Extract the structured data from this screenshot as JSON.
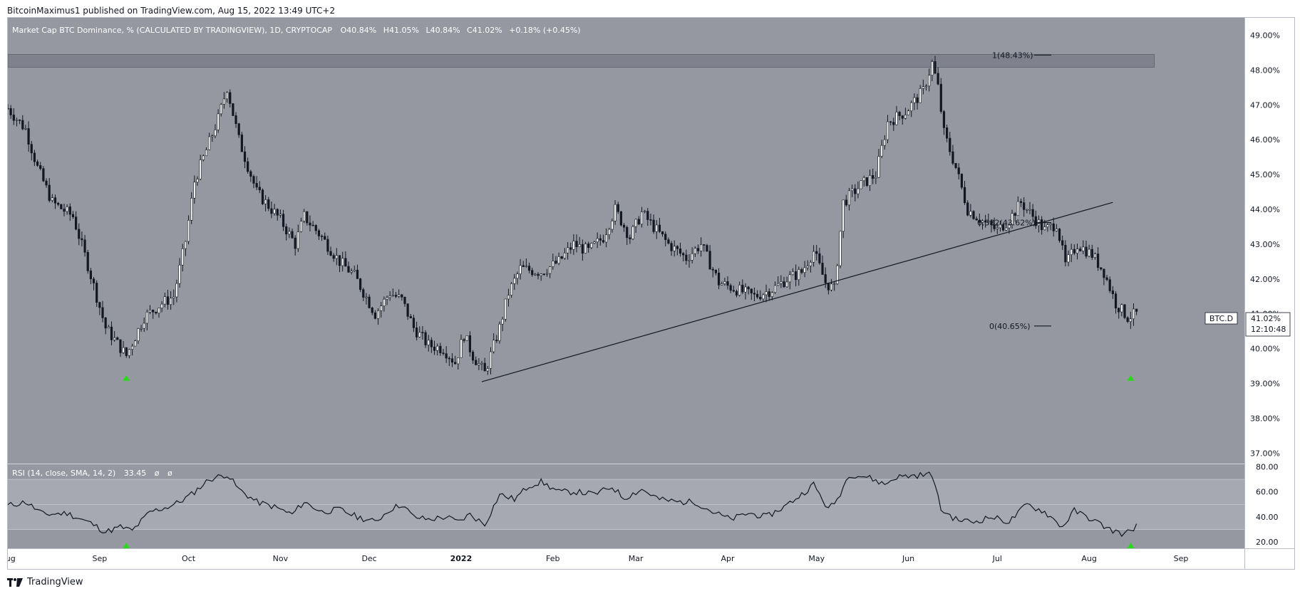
{
  "attribution": "BitcoinMaximus1 published on TradingView.com, Aug 15, 2022 13:49 UTC+2",
  "footer_brand": "TradingView",
  "colors": {
    "main_bg": "#9598a1",
    "rsi_bg": "#9598a1",
    "rsi_band": "#a6a9b2",
    "candle": "#131722",
    "signal": "#2bd91c",
    "resistance_box": "#787b86"
  },
  "legend": {
    "symbol": "Market Cap BTC Dominance, % (CALCULATED BY TRADINGVIEW), 1D, CRYPTOCAP",
    "o_label": "O",
    "o_value": "40.84%",
    "h_label": "H",
    "h_value": "41.05%",
    "l_label": "L",
    "l_value": "40.84%",
    "c_label": "C",
    "c_value": "41.02%",
    "change": "+0.18% (+0.45%)"
  },
  "rsi_legend": {
    "name": "RSI (14, close, SMA, 14, 2)",
    "value": "33.45",
    "na1": "ø",
    "na2": "ø"
  },
  "price_tag": {
    "symbol": "BTC.D",
    "value": "41.02%",
    "countdown": "12:10:48"
  },
  "fib_labels": [
    {
      "text": "1(48.43%)",
      "level": 48.43
    },
    {
      "text": "0.382(43.62%)",
      "level": 43.62
    },
    {
      "text": "0(40.65%)",
      "level": 40.65
    }
  ],
  "chart_data": {
    "type": "candlestick",
    "title": "Market Cap BTC Dominance, % (CALCULATED BY TRADINGVIEW), 1D, CRYPTOCAP",
    "timeframe": "1D",
    "ylim": [
      36.7,
      49.5
    ],
    "price_ticks": [
      "49.00%",
      "48.00%",
      "47.00%",
      "46.00%",
      "45.00%",
      "44.00%",
      "43.00%",
      "42.00%",
      "41.00%",
      "40.00%",
      "39.00%",
      "38.00%",
      "37.00%"
    ],
    "price_tick_values": [
      49,
      48,
      47,
      46,
      45,
      44,
      43,
      42,
      41,
      40,
      39,
      38,
      37
    ],
    "x_labels": [
      "Aug",
      "Sep",
      "Oct",
      "Nov",
      "Dec",
      "2022",
      "Feb",
      "Mar",
      "Apr",
      "May",
      "Jun",
      "Jul",
      "Aug",
      "Sep"
    ],
    "x_label_days": [
      0,
      31,
      61,
      92,
      122,
      153,
      184,
      212,
      243,
      273,
      304,
      334,
      365,
      396
    ],
    "price_path": [
      {
        "d": 0,
        "v": 46.9
      },
      {
        "d": 6,
        "v": 46.3
      },
      {
        "d": 10,
        "v": 45.2
      },
      {
        "d": 15,
        "v": 44.2
      },
      {
        "d": 22,
        "v": 43.8
      },
      {
        "d": 27,
        "v": 42.4
      },
      {
        "d": 33,
        "v": 40.6
      },
      {
        "d": 40,
        "v": 39.8
      },
      {
        "d": 46,
        "v": 40.9
      },
      {
        "d": 52,
        "v": 41.3
      },
      {
        "d": 56,
        "v": 41.5
      },
      {
        "d": 60,
        "v": 43.1
      },
      {
        "d": 63,
        "v": 44.8
      },
      {
        "d": 71,
        "v": 46.6
      },
      {
        "d": 74,
        "v": 47.5
      },
      {
        "d": 78,
        "v": 46.0
      },
      {
        "d": 84,
        "v": 44.5
      },
      {
        "d": 92,
        "v": 43.7
      },
      {
        "d": 97,
        "v": 43.0
      },
      {
        "d": 100,
        "v": 43.8
      },
      {
        "d": 106,
        "v": 43.2
      },
      {
        "d": 112,
        "v": 42.5
      },
      {
        "d": 117,
        "v": 42.1
      },
      {
        "d": 124,
        "v": 41.0
      },
      {
        "d": 129,
        "v": 41.6
      },
      {
        "d": 133,
        "v": 41.4
      },
      {
        "d": 137,
        "v": 40.6
      },
      {
        "d": 142,
        "v": 40.1
      },
      {
        "d": 147,
        "v": 40.0
      },
      {
        "d": 151,
        "v": 39.6
      },
      {
        "d": 154,
        "v": 40.4
      },
      {
        "d": 157,
        "v": 39.8
      },
      {
        "d": 161,
        "v": 39.3
      },
      {
        "d": 166,
        "v": 40.6
      },
      {
        "d": 169,
        "v": 41.6
      },
      {
        "d": 173,
        "v": 42.3
      },
      {
        "d": 180,
        "v": 42.2
      },
      {
        "d": 186,
        "v": 42.5
      },
      {
        "d": 191,
        "v": 43.0
      },
      {
        "d": 196,
        "v": 42.8
      },
      {
        "d": 201,
        "v": 43.2
      },
      {
        "d": 205,
        "v": 44.0
      },
      {
        "d": 210,
        "v": 43.2
      },
      {
        "d": 214,
        "v": 43.9
      },
      {
        "d": 218,
        "v": 43.5
      },
      {
        "d": 223,
        "v": 43.0
      },
      {
        "d": 229,
        "v": 42.6
      },
      {
        "d": 234,
        "v": 43.0
      },
      {
        "d": 240,
        "v": 41.9
      },
      {
        "d": 246,
        "v": 41.7
      },
      {
        "d": 252,
        "v": 41.5
      },
      {
        "d": 258,
        "v": 41.7
      },
      {
        "d": 263,
        "v": 42.0
      },
      {
        "d": 268,
        "v": 42.2
      },
      {
        "d": 272,
        "v": 42.8
      },
      {
        "d": 276,
        "v": 41.9
      },
      {
        "d": 279,
        "v": 41.7
      },
      {
        "d": 282,
        "v": 44.2
      },
      {
        "d": 288,
        "v": 44.7
      },
      {
        "d": 293,
        "v": 45.0
      },
      {
        "d": 297,
        "v": 46.5
      },
      {
        "d": 303,
        "v": 46.8
      },
      {
        "d": 309,
        "v": 47.4
      },
      {
        "d": 312,
        "v": 48.2
      },
      {
        "d": 314,
        "v": 47.5
      },
      {
        "d": 316,
        "v": 46.2
      },
      {
        "d": 320,
        "v": 45.2
      },
      {
        "d": 324,
        "v": 44.0
      },
      {
        "d": 330,
        "v": 43.6
      },
      {
        "d": 334,
        "v": 43.4
      },
      {
        "d": 338,
        "v": 43.7
      },
      {
        "d": 342,
        "v": 44.2
      },
      {
        "d": 346,
        "v": 43.8
      },
      {
        "d": 350,
        "v": 43.4
      },
      {
        "d": 354,
        "v": 43.6
      },
      {
        "d": 357,
        "v": 42.4
      },
      {
        "d": 361,
        "v": 43.0
      },
      {
        "d": 366,
        "v": 42.7
      },
      {
        "d": 370,
        "v": 42.2
      },
      {
        "d": 374,
        "v": 41.3
      },
      {
        "d": 378,
        "v": 40.9
      },
      {
        "d": 381,
        "v": 41.0
      }
    ],
    "resistance_zone": [
      48.08,
      48.45
    ],
    "trendline": {
      "start": {
        "d": 160,
        "v": 39.05
      },
      "end": {
        "d": 373,
        "v": 44.2
      }
    },
    "fib_levels": [
      48.43,
      43.62,
      40.65
    ],
    "signal_markers_days": [
      40,
      379
    ],
    "rsi": {
      "ylim": [
        15,
        82
      ],
      "ticks": [
        "80.00",
        "60.00",
        "40.00",
        "20.00"
      ],
      "tick_values": [
        80,
        60,
        40,
        20
      ],
      "band": [
        30,
        70
      ],
      "mid": 50,
      "path": [
        {
          "d": 0,
          "v": 49
        },
        {
          "d": 6,
          "v": 52
        },
        {
          "d": 12,
          "v": 42
        },
        {
          "d": 20,
          "v": 43
        },
        {
          "d": 28,
          "v": 35
        },
        {
          "d": 33,
          "v": 28
        },
        {
          "d": 38,
          "v": 32
        },
        {
          "d": 42,
          "v": 29
        },
        {
          "d": 48,
          "v": 44
        },
        {
          "d": 54,
          "v": 48
        },
        {
          "d": 58,
          "v": 52
        },
        {
          "d": 62,
          "v": 58
        },
        {
          "d": 68,
          "v": 70
        },
        {
          "d": 74,
          "v": 74
        },
        {
          "d": 78,
          "v": 62
        },
        {
          "d": 84,
          "v": 52
        },
        {
          "d": 90,
          "v": 48
        },
        {
          "d": 96,
          "v": 42
        },
        {
          "d": 100,
          "v": 52
        },
        {
          "d": 106,
          "v": 44
        },
        {
          "d": 112,
          "v": 46
        },
        {
          "d": 118,
          "v": 40
        },
        {
          "d": 124,
          "v": 36
        },
        {
          "d": 129,
          "v": 46
        },
        {
          "d": 133,
          "v": 50
        },
        {
          "d": 137,
          "v": 40
        },
        {
          "d": 142,
          "v": 38
        },
        {
          "d": 148,
          "v": 40
        },
        {
          "d": 152,
          "v": 36
        },
        {
          "d": 156,
          "v": 42
        },
        {
          "d": 161,
          "v": 34
        },
        {
          "d": 166,
          "v": 58
        },
        {
          "d": 171,
          "v": 54
        },
        {
          "d": 176,
          "v": 65
        },
        {
          "d": 180,
          "v": 68
        },
        {
          "d": 186,
          "v": 60
        },
        {
          "d": 192,
          "v": 60
        },
        {
          "d": 198,
          "v": 58
        },
        {
          "d": 204,
          "v": 64
        },
        {
          "d": 208,
          "v": 55
        },
        {
          "d": 214,
          "v": 62
        },
        {
          "d": 220,
          "v": 54
        },
        {
          "d": 226,
          "v": 52
        },
        {
          "d": 232,
          "v": 52
        },
        {
          "d": 238,
          "v": 44
        },
        {
          "d": 244,
          "v": 38
        },
        {
          "d": 250,
          "v": 43
        },
        {
          "d": 256,
          "v": 40
        },
        {
          "d": 262,
          "v": 48
        },
        {
          "d": 268,
          "v": 58
        },
        {
          "d": 272,
          "v": 66
        },
        {
          "d": 277,
          "v": 46
        },
        {
          "d": 280,
          "v": 54
        },
        {
          "d": 284,
          "v": 74
        },
        {
          "d": 290,
          "v": 72
        },
        {
          "d": 296,
          "v": 66
        },
        {
          "d": 300,
          "v": 72
        },
        {
          "d": 306,
          "v": 73
        },
        {
          "d": 312,
          "v": 74
        },
        {
          "d": 315,
          "v": 46
        },
        {
          "d": 320,
          "v": 38
        },
        {
          "d": 326,
          "v": 36
        },
        {
          "d": 332,
          "v": 40
        },
        {
          "d": 338,
          "v": 36
        },
        {
          "d": 344,
          "v": 50
        },
        {
          "d": 350,
          "v": 44
        },
        {
          "d": 356,
          "v": 32
        },
        {
          "d": 360,
          "v": 45
        },
        {
          "d": 366,
          "v": 38
        },
        {
          "d": 372,
          "v": 30
        },
        {
          "d": 377,
          "v": 26
        },
        {
          "d": 381,
          "v": 33
        }
      ]
    }
  }
}
